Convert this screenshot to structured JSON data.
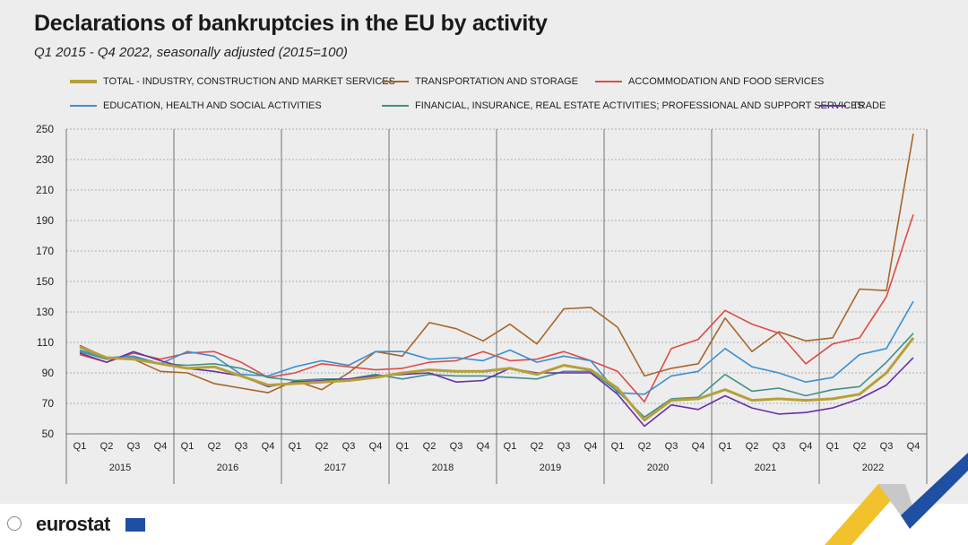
{
  "title": "Declarations of bankruptcies in the EU by activity",
  "subtitle": "Q1 2015 - Q4 2022, seasonally adjusted  (2015=100)",
  "logo_text": "eurostat",
  "chart_data": {
    "type": "line",
    "quarters": [
      "Q1",
      "Q2",
      "Q3",
      "Q4"
    ],
    "years": [
      "2015",
      "2016",
      "2017",
      "2018",
      "2019",
      "2020",
      "2021",
      "2022"
    ],
    "yticks": [
      50,
      70,
      90,
      110,
      130,
      150,
      170,
      190,
      210,
      230,
      250
    ],
    "ylim": [
      50,
      250
    ],
    "grid": true,
    "legend_position": "top",
    "series": [
      {
        "name": "TOTAL - INDUSTRY, CONSTRUCTION AND MARKET SERVICES",
        "color": "#b5a03a",
        "width": 3,
        "values": [
          107,
          100,
          99,
          96,
          93,
          94,
          88,
          82,
          83,
          84,
          85,
          87,
          90,
          92,
          91,
          91,
          93,
          89,
          95,
          92,
          80,
          59,
          72,
          73,
          79,
          72,
          73,
          72,
          73,
          76,
          90,
          113
        ]
      },
      {
        "name": "TRANSPORTATION AND STORAGE",
        "color": "#a8652b",
        "width": 1.6,
        "values": [
          108,
          100,
          99,
          91,
          90,
          83,
          80,
          77,
          85,
          79,
          90,
          104,
          101,
          123,
          119,
          111,
          122,
          109,
          132,
          133,
          120,
          88,
          93,
          96,
          126,
          104,
          117,
          111,
          113,
          145,
          144,
          247
        ]
      },
      {
        "name": "ACCOMMODATION AND FOOD SERVICES",
        "color": "#de4b48",
        "width": 1.6,
        "values": [
          102,
          97,
          103,
          99,
          103,
          104,
          97,
          87,
          90,
          96,
          94,
          92,
          93,
          97,
          98,
          104,
          98,
          99,
          104,
          98,
          91,
          71,
          106,
          112,
          131,
          122,
          116,
          96,
          109,
          113,
          140,
          194
        ]
      },
      {
        "name": "EDUCATION,  HEALTH AND SOCIAL ACTIVITIES",
        "color": "#3b8fd0",
        "width": 1.6,
        "values": [
          105,
          100,
          101,
          96,
          104,
          101,
          89,
          88,
          94,
          98,
          95,
          104,
          104,
          99,
          100,
          98,
          105,
          97,
          101,
          98,
          77,
          76,
          88,
          91,
          106,
          94,
          90,
          84,
          87,
          102,
          106,
          137
        ]
      },
      {
        "name": "FINANCIAL, INSURANCE, REAL ESTATE ACTIVITIES; PROFESSIONAL AND SUPPORT SERVICES",
        "color": "#3f9189",
        "width": 1.6,
        "values": [
          104,
          99,
          100,
          96,
          95,
          96,
          93,
          87,
          85,
          86,
          86,
          89,
          86,
          89,
          88,
          88,
          87,
          86,
          91,
          91,
          78,
          61,
          73,
          74,
          89,
          78,
          80,
          75,
          79,
          81,
          97,
          116
        ]
      },
      {
        "name": "TRADE",
        "color": "#6a2fa6",
        "width": 1.6,
        "values": [
          103,
          97,
          104,
          98,
          93,
          91,
          88,
          81,
          84,
          85,
          86,
          88,
          89,
          90,
          84,
          85,
          93,
          90,
          90,
          90,
          76,
          55,
          69,
          66,
          75,
          67,
          63,
          64,
          67,
          73,
          82,
          100
        ]
      }
    ]
  }
}
